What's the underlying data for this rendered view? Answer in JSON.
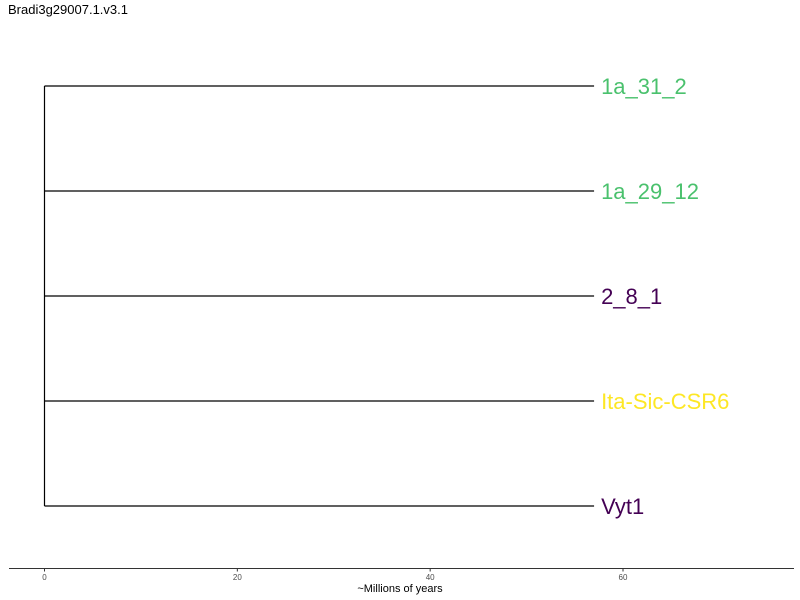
{
  "title": "Bradi3g29007.1.v3.1",
  "chart_data": {
    "type": "dendrogram",
    "xlabel": "~Millions of years",
    "xlim": [
      0,
      78
    ],
    "x_ticks": [
      0,
      20,
      40,
      60
    ],
    "root_age": 0,
    "tips": [
      {
        "label": "1a_31_2",
        "branch_end": 57,
        "color": "#4ac16d"
      },
      {
        "label": "1a_29_12",
        "branch_end": 57,
        "color": "#4ac16d"
      },
      {
        "label": "2_8_1",
        "branch_end": 57,
        "color": "#440154"
      },
      {
        "label": "Ita-Sic-CSR6",
        "branch_end": 57,
        "color": "#fde725"
      },
      {
        "label": "Vyt1",
        "branch_end": 57,
        "color": "#440154"
      }
    ]
  }
}
